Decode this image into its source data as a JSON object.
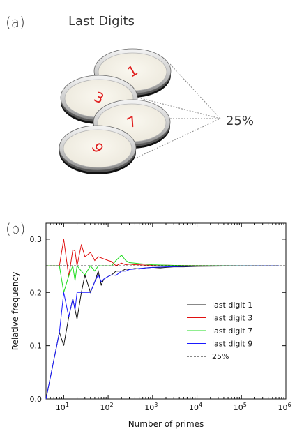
{
  "panel_a": {
    "label": "(a)",
    "title": "Last Digits",
    "percentage_label": "25%",
    "dishes": [
      {
        "digit": "1"
      },
      {
        "digit": "3"
      },
      {
        "digit": "7"
      },
      {
        "digit": "9"
      }
    ],
    "digit_color": "#e02020",
    "guide_color": "#888888"
  },
  "panel_b": {
    "label": "(b)"
  },
  "chart_data": {
    "type": "line",
    "xlabel": "Number of primes",
    "ylabel": "Relative frequency",
    "x_scale": "log",
    "xlim": [
      4,
      1000000
    ],
    "ylim": [
      0.0,
      0.33
    ],
    "x_ticks": [
      {
        "base": "10",
        "exp": "1",
        "value": 10
      },
      {
        "base": "10",
        "exp": "2",
        "value": 100
      },
      {
        "base": "10",
        "exp": "3",
        "value": 1000
      },
      {
        "base": "10",
        "exp": "4",
        "value": 10000
      },
      {
        "base": "10",
        "exp": "5",
        "value": 100000
      },
      {
        "base": "10",
        "exp": "6",
        "value": 1000000
      }
    ],
    "y_ticks": [
      "0.0",
      "0.1",
      "0.2",
      "0.3"
    ],
    "y_tick_values": [
      0.0,
      0.1,
      0.2,
      0.3
    ],
    "legend_position": "center-right",
    "series": [
      {
        "name": "last digit 1",
        "color": "#111111",
        "points": [
          [
            4,
            0.0
          ],
          [
            8,
            0.125
          ],
          [
            10,
            0.1
          ],
          [
            13,
            0.154
          ],
          [
            16,
            0.188
          ],
          [
            20,
            0.15
          ],
          [
            25,
            0.2
          ],
          [
            30,
            0.233
          ],
          [
            40,
            0.2
          ],
          [
            50,
            0.22
          ],
          [
            60,
            0.24
          ],
          [
            70,
            0.214
          ],
          [
            80,
            0.225
          ],
          [
            100,
            0.23
          ],
          [
            120,
            0.233
          ],
          [
            150,
            0.24
          ],
          [
            200,
            0.24
          ],
          [
            250,
            0.244
          ],
          [
            300,
            0.243
          ],
          [
            400,
            0.245
          ],
          [
            500,
            0.244
          ],
          [
            700,
            0.246
          ],
          [
            1000,
            0.247
          ],
          [
            1500,
            0.246
          ],
          [
            2000,
            0.247
          ],
          [
            3000,
            0.248
          ],
          [
            5000,
            0.248
          ],
          [
            10000,
            0.249
          ],
          [
            100000,
            0.2498
          ],
          [
            700000,
            0.25
          ]
        ]
      },
      {
        "name": "last digit 3",
        "color": "#e01010",
        "points": [
          [
            4,
            0.25
          ],
          [
            8,
            0.25
          ],
          [
            10,
            0.3
          ],
          [
            13,
            0.23
          ],
          [
            16,
            0.28
          ],
          [
            18,
            0.278
          ],
          [
            20,
            0.25
          ],
          [
            25,
            0.29
          ],
          [
            30,
            0.267
          ],
          [
            40,
            0.275
          ],
          [
            50,
            0.26
          ],
          [
            60,
            0.267
          ],
          [
            80,
            0.263
          ],
          [
            100,
            0.26
          ],
          [
            120,
            0.258
          ],
          [
            150,
            0.25
          ],
          [
            200,
            0.255
          ],
          [
            250,
            0.252
          ],
          [
            300,
            0.253
          ],
          [
            400,
            0.252
          ],
          [
            500,
            0.252
          ],
          [
            700,
            0.251
          ],
          [
            1000,
            0.251
          ],
          [
            2000,
            0.251
          ],
          [
            5000,
            0.2505
          ],
          [
            10000,
            0.2503
          ],
          [
            100000,
            0.2501
          ],
          [
            700000,
            0.25
          ]
        ]
      },
      {
        "name": "last digit 7",
        "color": "#20dd20",
        "points": [
          [
            4,
            0.25
          ],
          [
            8,
            0.25
          ],
          [
            10,
            0.2
          ],
          [
            13,
            0.231
          ],
          [
            16,
            0.25
          ],
          [
            18,
            0.222
          ],
          [
            20,
            0.25
          ],
          [
            25,
            0.24
          ],
          [
            30,
            0.233
          ],
          [
            40,
            0.25
          ],
          [
            50,
            0.24
          ],
          [
            60,
            0.25
          ],
          [
            80,
            0.25
          ],
          [
            100,
            0.25
          ],
          [
            120,
            0.25
          ],
          [
            150,
            0.26
          ],
          [
            200,
            0.27
          ],
          [
            250,
            0.26
          ],
          [
            300,
            0.256
          ],
          [
            400,
            0.255
          ],
          [
            500,
            0.254
          ],
          [
            700,
            0.253
          ],
          [
            1000,
            0.252
          ],
          [
            2000,
            0.251
          ],
          [
            5000,
            0.2505
          ],
          [
            10000,
            0.2502
          ],
          [
            100000,
            0.2501
          ],
          [
            700000,
            0.25
          ]
        ]
      },
      {
        "name": "last digit 9",
        "color": "#1a1aff",
        "points": [
          [
            4,
            0.0
          ],
          [
            8,
            0.125
          ],
          [
            10,
            0.2
          ],
          [
            13,
            0.154
          ],
          [
            16,
            0.188
          ],
          [
            18,
            0.167
          ],
          [
            20,
            0.2
          ],
          [
            25,
            0.2
          ],
          [
            30,
            0.2
          ],
          [
            40,
            0.2
          ],
          [
            50,
            0.22
          ],
          [
            60,
            0.233
          ],
          [
            70,
            0.22
          ],
          [
            80,
            0.225
          ],
          [
            100,
            0.23
          ],
          [
            120,
            0.233
          ],
          [
            150,
            0.232
          ],
          [
            200,
            0.24
          ],
          [
            250,
            0.24
          ],
          [
            300,
            0.243
          ],
          [
            400,
            0.244
          ],
          [
            500,
            0.245
          ],
          [
            700,
            0.246
          ],
          [
            1000,
            0.247
          ],
          [
            2000,
            0.248
          ],
          [
            5000,
            0.249
          ],
          [
            10000,
            0.2495
          ],
          [
            100000,
            0.2499
          ],
          [
            700000,
            0.25
          ]
        ]
      },
      {
        "name": "25%",
        "color": "#111111",
        "dashed": true,
        "points": [
          [
            4,
            0.25
          ],
          [
            1000000,
            0.25
          ]
        ]
      }
    ]
  }
}
